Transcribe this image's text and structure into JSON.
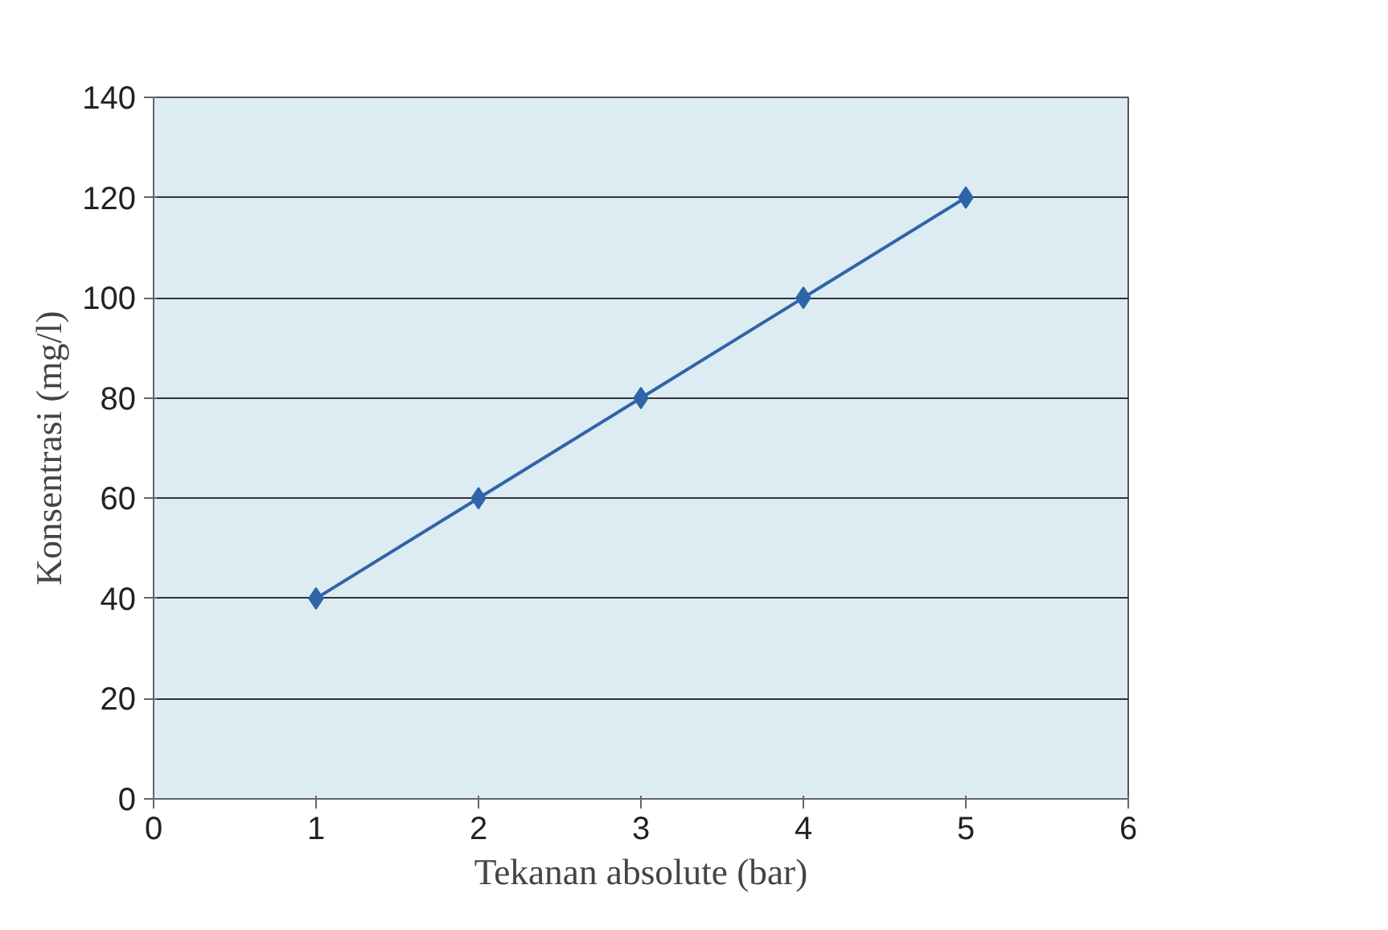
{
  "chart_data": {
    "type": "line",
    "xlabel": "Tekanan absolute (bar)",
    "ylabel": "Konsentrasi (mg/l)",
    "x": [
      1,
      2,
      3,
      4,
      5
    ],
    "series": [
      {
        "color": "#2f64a8",
        "values": [
          40,
          60,
          80,
          100,
          120
        ]
      }
    ],
    "xlim": [
      0,
      6
    ],
    "xticks": [
      0,
      1,
      2,
      3,
      4,
      5,
      6
    ],
    "ylim": [
      0,
      140
    ],
    "yticks": [
      0,
      20,
      40,
      60,
      80,
      100,
      120,
      140
    ],
    "grid": "y",
    "marker": "diamond",
    "line_style": "solid"
  }
}
